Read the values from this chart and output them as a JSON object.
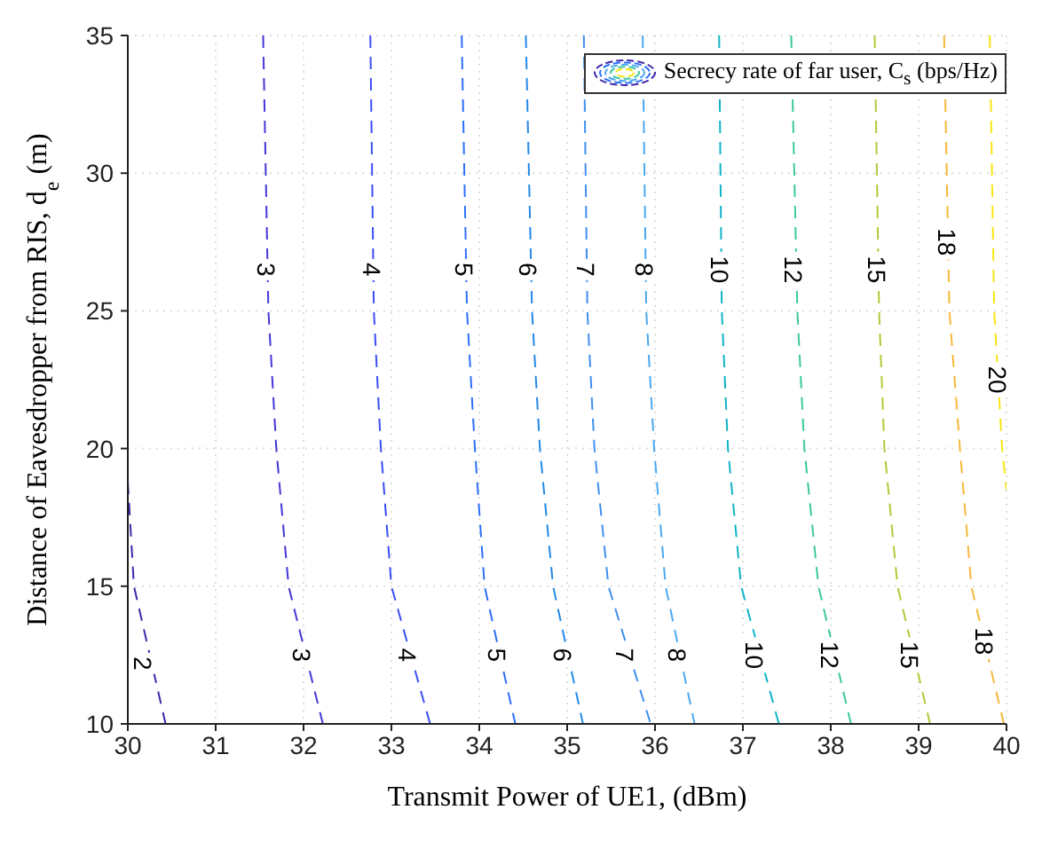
{
  "chart_data": {
    "type": "line",
    "xlabel": "Transmit Power of UE1, (dBm)",
    "ylabel": "Distance of Eavesdropper from RIS, d$_{e}$ (m)",
    "legend_title": "Secrecy rate of far user, C$_{s}$ (bps/Hz)",
    "grid": true,
    "line_style": "dashed",
    "marker": "none",
    "xlim": [
      30,
      40
    ],
    "xticks": [
      30,
      31,
      32,
      33,
      34,
      35,
      36,
      37,
      38,
      39,
      40
    ],
    "ylim": [
      10,
      35
    ],
    "yticks": [
      10,
      15,
      20,
      25,
      30,
      35
    ],
    "series": [
      {
        "color": "#3e26a8",
        "x": [
          30,
          30.07,
          30.43
        ],
        "values": [
          18.8,
          15,
          10
        ]
      },
      {
        "color": "#4536d7",
        "x": [
          31.54,
          31.6,
          31.69,
          31.83,
          32.22
        ],
        "values": [
          35,
          25,
          20,
          15,
          10
        ]
      },
      {
        "color": "#3b4ef5",
        "x": [
          32.76,
          32.8,
          32.88,
          33.0,
          33.44
        ],
        "values": [
          35,
          25,
          20,
          15,
          10
        ]
      },
      {
        "color": "#2d6ff8",
        "x": [
          33.8,
          33.86,
          33.95,
          34.06,
          34.41
        ],
        "values": [
          35,
          25,
          20,
          15,
          10
        ]
      },
      {
        "color": "#2389e8",
        "x": [
          34.53,
          34.6,
          34.69,
          34.84,
          35.18
        ],
        "values": [
          35,
          25,
          20,
          15,
          10
        ]
      },
      {
        "color": "#3f8ff0",
        "x": [
          35.19,
          35.23,
          35.31,
          35.47,
          35.95
        ],
        "values": [
          35,
          25,
          20,
          15,
          10
        ]
      },
      {
        "color": "#4aa8f0",
        "x": [
          35.86,
          35.9,
          35.99,
          36.12,
          36.45
        ],
        "values": [
          35,
          25,
          20,
          15,
          10
        ]
      },
      {
        "color": "#10b4c8",
        "x": [
          36.73,
          36.76,
          36.83,
          36.98,
          37.41
        ],
        "values": [
          35,
          25,
          20,
          15,
          10
        ]
      },
      {
        "color": "#3cc8a0",
        "x": [
          37.55,
          37.62,
          37.7,
          37.86,
          38.23
        ],
        "values": [
          35,
          25,
          20,
          15,
          10
        ]
      },
      {
        "color": "#b4c838",
        "x": [
          38.5,
          38.55,
          38.61,
          38.76,
          39.13
        ],
        "values": [
          35,
          25,
          20,
          15,
          10
        ]
      },
      {
        "color": "#f6b83a",
        "x": [
          39.29,
          39.35,
          39.47,
          39.6,
          39.97
        ],
        "values": [
          35,
          25,
          20,
          15,
          10
        ]
      },
      {
        "color": "#f8e514",
        "x": [
          39.81,
          39.86,
          39.95,
          40
        ],
        "values": [
          35,
          25,
          20,
          18.5
        ]
      }
    ],
    "annotations": [
      {
        "text": "3",
        "x": 31.58,
        "y": 26.5
      },
      {
        "text": "4",
        "x": 32.78,
        "y": 26.5
      },
      {
        "text": "5",
        "x": 33.83,
        "y": 26.5
      },
      {
        "text": "6",
        "x": 34.56,
        "y": 26.5
      },
      {
        "text": "7",
        "x": 35.21,
        "y": 26.5
      },
      {
        "text": "8",
        "x": 35.88,
        "y": 26.5
      },
      {
        "text": "10",
        "x": 36.74,
        "y": 26.5
      },
      {
        "text": "12",
        "x": 37.58,
        "y": 26.5
      },
      {
        "text": "15",
        "x": 38.52,
        "y": 26.5
      },
      {
        "text": "18",
        "x": 39.32,
        "y": 27.5
      },
      {
        "text": "20",
        "x": 39.9,
        "y": 22.5
      },
      {
        "text": "2",
        "x": 30.17,
        "y": 12.2
      },
      {
        "text": "3",
        "x": 31.98,
        "y": 12.5
      },
      {
        "text": "4",
        "x": 33.18,
        "y": 12.5
      },
      {
        "text": "5",
        "x": 34.2,
        "y": 12.5
      },
      {
        "text": "6",
        "x": 34.95,
        "y": 12.5
      },
      {
        "text": "7",
        "x": 35.66,
        "y": 12.5
      },
      {
        "text": "8",
        "x": 36.25,
        "y": 12.5
      },
      {
        "text": "10",
        "x": 37.13,
        "y": 12.5
      },
      {
        "text": "12",
        "x": 37.99,
        "y": 12.5
      },
      {
        "text": "15",
        "x": 38.9,
        "y": 12.5
      },
      {
        "text": "18",
        "x": 39.75,
        "y": 13
      }
    ]
  }
}
